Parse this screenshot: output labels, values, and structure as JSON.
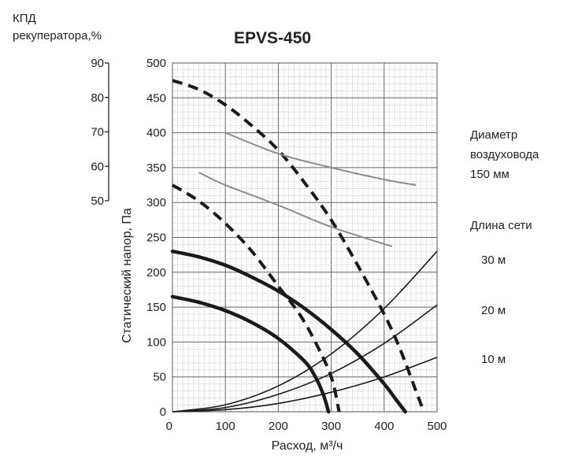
{
  "chart_data": {
    "type": "line",
    "title": "EPVS-450",
    "xlabel": "Расход, м³/ч",
    "ylabel": "Статический напор, Па",
    "xlim": [
      0,
      500
    ],
    "ylim": [
      0,
      500
    ],
    "x_ticks": [
      "0",
      "100",
      "200",
      "300",
      "400",
      "500"
    ],
    "y_ticks": [
      "0",
      "50",
      "100",
      "150",
      "200",
      "250",
      "300",
      "350",
      "400",
      "450",
      "500"
    ],
    "grid": true,
    "efficiency_axis": {
      "label_line1": "КПД",
      "label_line2": "рекуператора,%",
      "ticks": [
        "90",
        "80",
        "70",
        "60",
        "50"
      ]
    },
    "right_labels": {
      "duct_line1": "Диаметр",
      "duct_line2": "воздуховода",
      "duct_line3": "150 мм",
      "network_length": "Длина сети",
      "l30": "30 м",
      "l20": "20 м",
      "l10": "10 м"
    },
    "series": [
      {
        "style": "thick",
        "points": [
          [
            0,
            230
          ],
          [
            50,
            222
          ],
          [
            100,
            210
          ],
          [
            150,
            193
          ],
          [
            200,
            173
          ],
          [
            250,
            148
          ],
          [
            300,
            118
          ],
          [
            350,
            83
          ],
          [
            400,
            40
          ],
          [
            420,
            20
          ],
          [
            440,
            0
          ]
        ]
      },
      {
        "style": "thick",
        "points": [
          [
            0,
            165
          ],
          [
            50,
            157
          ],
          [
            100,
            145
          ],
          [
            150,
            128
          ],
          [
            200,
            105
          ],
          [
            250,
            72
          ],
          [
            270,
            50
          ],
          [
            285,
            25
          ],
          [
            295,
            0
          ]
        ]
      },
      {
        "style": "dashed",
        "points": [
          [
            0,
            475
          ],
          [
            50,
            462
          ],
          [
            100,
            440
          ],
          [
            150,
            410
          ],
          [
            200,
            375
          ],
          [
            250,
            328
          ],
          [
            300,
            275
          ],
          [
            350,
            210
          ],
          [
            400,
            140
          ],
          [
            430,
            90
          ],
          [
            460,
            30
          ],
          [
            475,
            0
          ]
        ]
      },
      {
        "style": "dashed",
        "points": [
          [
            0,
            325
          ],
          [
            50,
            302
          ],
          [
            100,
            270
          ],
          [
            150,
            230
          ],
          [
            200,
            180
          ],
          [
            240,
            140
          ],
          [
            270,
            100
          ],
          [
            300,
            50
          ],
          [
            315,
            0
          ]
        ]
      },
      {
        "style": "efficiency",
        "points": [
          [
            100,
            400
          ],
          [
            200,
            370
          ],
          [
            300,
            350
          ],
          [
            400,
            333
          ],
          [
            460,
            325
          ]
        ]
      },
      {
        "style": "efficiency",
        "points": [
          [
            50,
            343
          ],
          [
            100,
            325
          ],
          [
            200,
            296
          ],
          [
            300,
            265
          ],
          [
            415,
            237
          ]
        ]
      },
      {
        "style": "system",
        "name": "30 м",
        "points": [
          [
            0,
            0
          ],
          [
            100,
            10
          ],
          [
            200,
            37
          ],
          [
            300,
            83
          ],
          [
            400,
            148
          ],
          [
            500,
            230
          ]
        ]
      },
      {
        "style": "system",
        "name": "20 м",
        "points": [
          [
            0,
            0
          ],
          [
            100,
            6
          ],
          [
            200,
            25
          ],
          [
            300,
            55
          ],
          [
            400,
            98
          ],
          [
            500,
            153
          ]
        ]
      },
      {
        "style": "system",
        "name": "10 м",
        "points": [
          [
            0,
            0
          ],
          [
            100,
            3
          ],
          [
            200,
            12
          ],
          [
            300,
            28
          ],
          [
            400,
            50
          ],
          [
            500,
            78
          ]
        ]
      }
    ]
  }
}
